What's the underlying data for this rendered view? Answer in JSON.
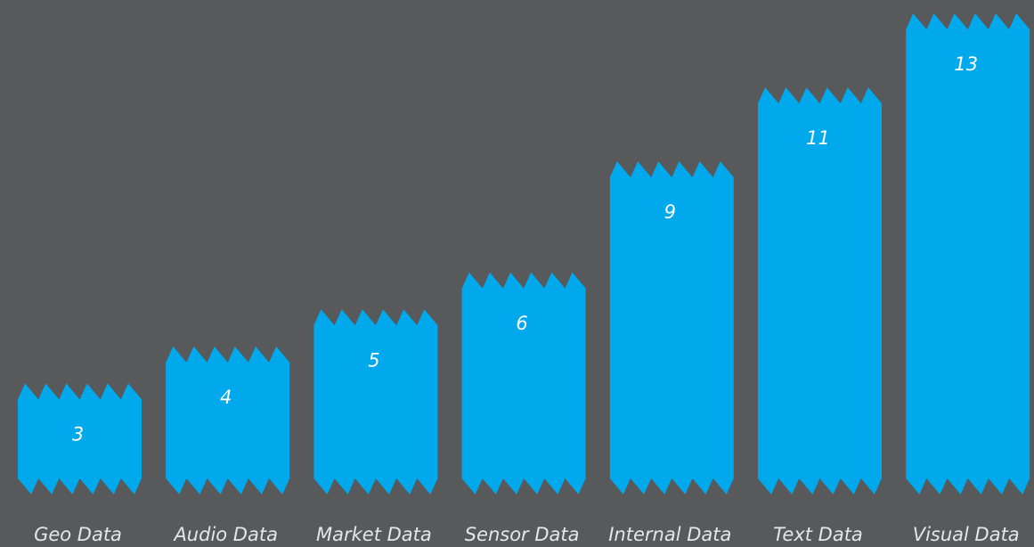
{
  "chart_data": {
    "type": "bar",
    "categories": [
      "Geo Data",
      "Audio Data",
      "Market Data",
      "Sensor Data",
      "Internal Data",
      "Text Data",
      "Visual Data"
    ],
    "values": [
      3,
      4,
      5,
      6,
      9,
      11,
      13
    ],
    "color": "#00a9ec"
  }
}
